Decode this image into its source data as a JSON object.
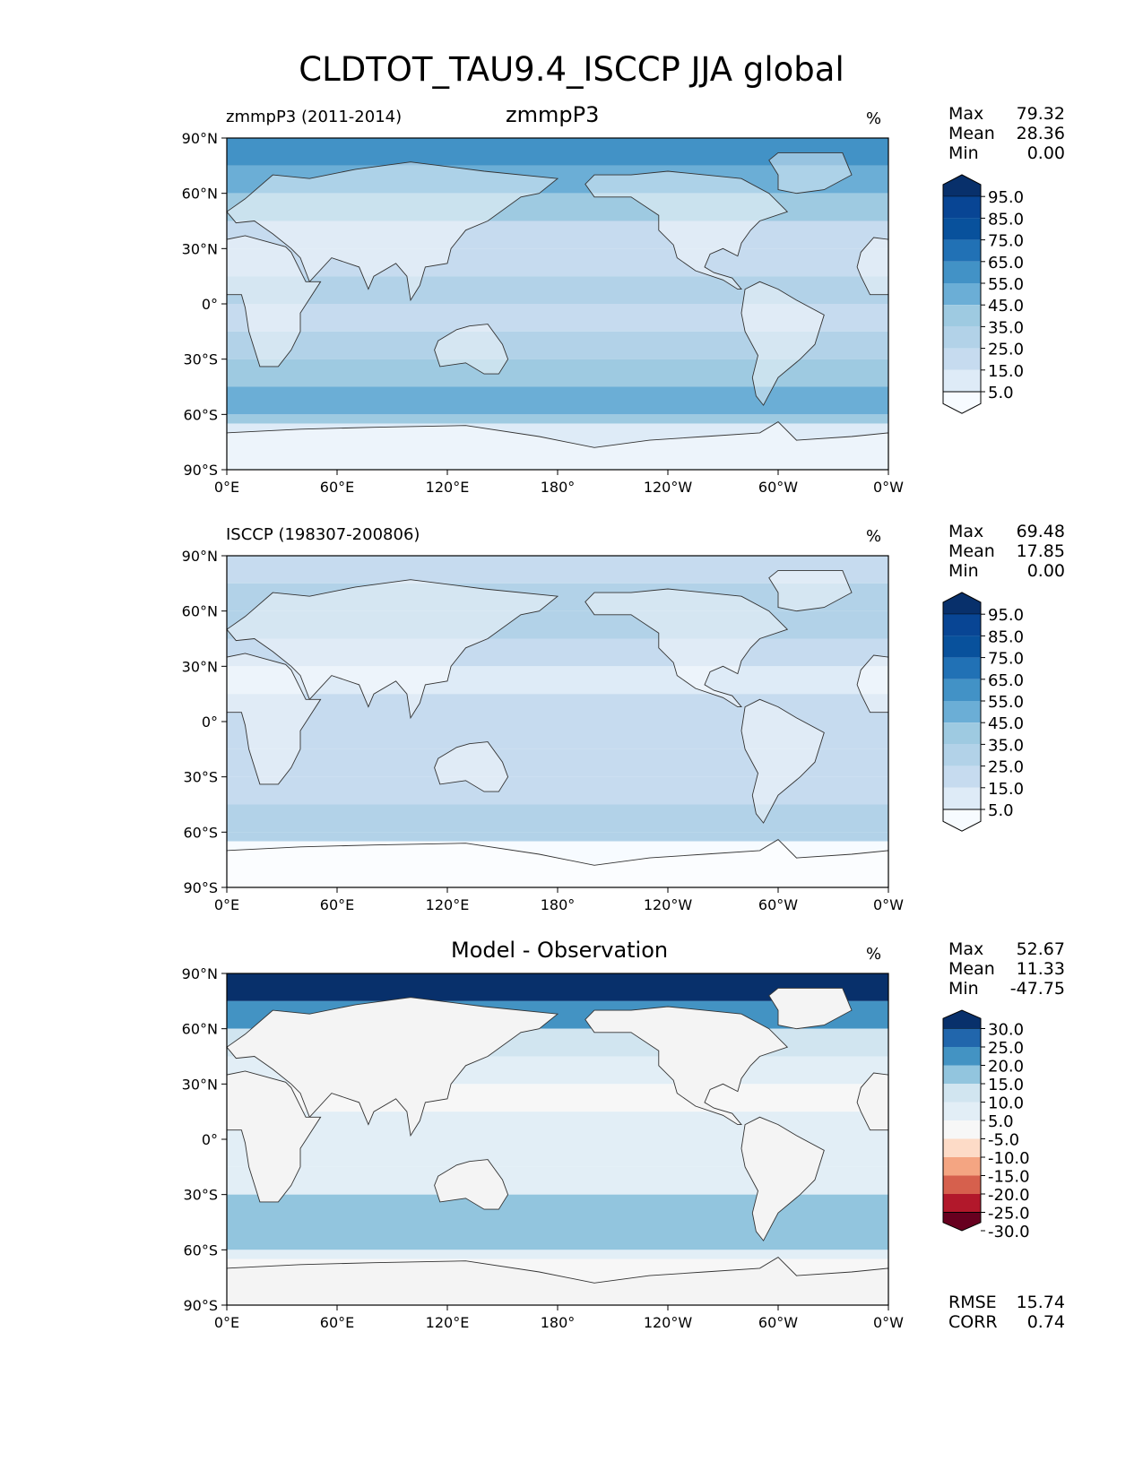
{
  "title": "CLDTOT_TAU9.4_ISCCP JJA global",
  "colors": {
    "seq": [
      "#f7fbff",
      "#deebf7",
      "#c6dbef",
      "#b2d2e8",
      "#9ecae1",
      "#6baed6",
      "#4292c6",
      "#2171b5",
      "#08519c",
      "#084594",
      "#08306b"
    ],
    "div": [
      "#67001f",
      "#b2182b",
      "#d6604d",
      "#f4a582",
      "#fddbc7",
      "#f7f7f7",
      "#e2eef6",
      "#d1e5f0",
      "#92c5de",
      "#4393c3",
      "#2166ac",
      "#08306b"
    ],
    "land_line": "#333333"
  },
  "axis": {
    "lat_ticks": [
      "90°N",
      "60°N",
      "30°N",
      "0°",
      "30°S",
      "60°S",
      "90°S"
    ],
    "lon_ticks": [
      "0°E",
      "60°E",
      "120°E",
      "180°",
      "120°W",
      "60°W",
      "0°W"
    ]
  },
  "panels": [
    {
      "id": "model",
      "left_title": "zmmpP3 (2011-2014)",
      "center_title": "zmmpP3",
      "units": "%",
      "stats": [
        [
          "Max",
          "79.32"
        ],
        [
          "Mean",
          "28.36"
        ],
        [
          "Min",
          "0.00"
        ]
      ],
      "colorbar_labels": [
        "95.0",
        "85.0",
        "75.0",
        "65.0",
        "55.0",
        "45.0",
        "35.0",
        "25.0",
        "15.0",
        "5.0"
      ]
    },
    {
      "id": "obs",
      "left_title": "ISCCP (198307-200806)",
      "center_title": "",
      "units": "%",
      "stats": [
        [
          "Max",
          "69.48"
        ],
        [
          "Mean",
          "17.85"
        ],
        [
          "Min",
          "0.00"
        ]
      ],
      "colorbar_labels": [
        "95.0",
        "85.0",
        "75.0",
        "65.0",
        "55.0",
        "45.0",
        "35.0",
        "25.0",
        "15.0",
        "5.0"
      ]
    },
    {
      "id": "diff",
      "left_title": "",
      "center_title": "Model - Observation",
      "units": "%",
      "stats": [
        [
          "Max",
          "52.67"
        ],
        [
          "Mean",
          "11.33"
        ],
        [
          "Min",
          "-47.75"
        ]
      ],
      "colorbar_labels": [
        "30.0",
        "25.0",
        "20.0",
        "15.0",
        "10.0",
        "5.0",
        "-5.0",
        "-10.0",
        "-15.0",
        "-20.0",
        "-25.0",
        "-30.0"
      ],
      "extra_stats": [
        [
          "RMSE",
          "15.74"
        ],
        [
          "CORR",
          "0.74"
        ]
      ]
    }
  ],
  "chart_data": [
    {
      "type": "heatmap",
      "title": "zmmpP3",
      "units": "%",
      "x_label_ticks": [
        "0°E",
        "60°E",
        "120°E",
        "180°",
        "120°W",
        "60°W",
        "0°W"
      ],
      "y_label_ticks": [
        "90°N",
        "60°N",
        "30°N",
        "0°",
        "30°S",
        "60°S",
        "90°S"
      ],
      "xlim": [
        0,
        360
      ],
      "ylim": [
        -90,
        90
      ],
      "levels": [
        5,
        15,
        25,
        35,
        45,
        55,
        65,
        75,
        85,
        95
      ],
      "zonal_bands": [
        {
          "lat": [
            75,
            90
          ],
          "value": 55
        },
        {
          "lat": [
            60,
            75
          ],
          "value": 45
        },
        {
          "lat": [
            45,
            60
          ],
          "value": 40
        },
        {
          "lat": [
            30,
            45
          ],
          "value": 22
        },
        {
          "lat": [
            15,
            30
          ],
          "value": 15
        },
        {
          "lat": [
            0,
            15
          ],
          "value": 25
        },
        {
          "lat": [
            -15,
            0
          ],
          "value": 22
        },
        {
          "lat": [
            -30,
            -15
          ],
          "value": 25
        },
        {
          "lat": [
            -45,
            -30
          ],
          "value": 35
        },
        {
          "lat": [
            -60,
            -45
          ],
          "value": 45
        },
        {
          "lat": [
            -65,
            -60
          ],
          "value": 35
        },
        {
          "lat": [
            -90,
            -65
          ],
          "value": 5
        }
      ],
      "max": 79.32,
      "mean": 28.36,
      "min": 0.0
    },
    {
      "type": "heatmap",
      "title": "ISCCP (198307-200806)",
      "units": "%",
      "x_label_ticks": [
        "0°E",
        "60°E",
        "120°E",
        "180°",
        "120°W",
        "60°W",
        "0°W"
      ],
      "y_label_ticks": [
        "90°N",
        "60°N",
        "30°N",
        "0°",
        "30°S",
        "60°S",
        "90°S"
      ],
      "xlim": [
        0,
        360
      ],
      "ylim": [
        -90,
        90
      ],
      "levels": [
        5,
        15,
        25,
        35,
        45,
        55,
        65,
        75,
        85,
        95
      ],
      "zonal_bands": [
        {
          "lat": [
            75,
            90
          ],
          "value": 15
        },
        {
          "lat": [
            60,
            75
          ],
          "value": 25
        },
        {
          "lat": [
            45,
            60
          ],
          "value": 28
        },
        {
          "lat": [
            30,
            45
          ],
          "value": 15
        },
        {
          "lat": [
            15,
            30
          ],
          "value": 12
        },
        {
          "lat": [
            0,
            15
          ],
          "value": 18
        },
        {
          "lat": [
            -15,
            0
          ],
          "value": 15
        },
        {
          "lat": [
            -30,
            -15
          ],
          "value": 18
        },
        {
          "lat": [
            -45,
            -30
          ],
          "value": 22
        },
        {
          "lat": [
            -60,
            -45
          ],
          "value": 30
        },
        {
          "lat": [
            -65,
            -60
          ],
          "value": 25
        },
        {
          "lat": [
            -90,
            -65
          ],
          "value": 0
        }
      ],
      "max": 69.48,
      "mean": 17.85,
      "min": 0.0
    },
    {
      "type": "heatmap",
      "title": "Model - Observation",
      "units": "%",
      "x_label_ticks": [
        "0°E",
        "60°E",
        "120°E",
        "180°",
        "120°W",
        "60°W",
        "0°W"
      ],
      "y_label_ticks": [
        "90°N",
        "60°N",
        "30°N",
        "0°",
        "30°S",
        "60°S",
        "90°S"
      ],
      "xlim": [
        0,
        360
      ],
      "ylim": [
        -90,
        90
      ],
      "levels": [
        -30,
        -25,
        -20,
        -15,
        -10,
        -5,
        5,
        10,
        15,
        20,
        25,
        30
      ],
      "zonal_bands": [
        {
          "lat": [
            75,
            90
          ],
          "value": 35
        },
        {
          "lat": [
            60,
            75
          ],
          "value": 20
        },
        {
          "lat": [
            45,
            60
          ],
          "value": 12
        },
        {
          "lat": [
            30,
            45
          ],
          "value": 7
        },
        {
          "lat": [
            15,
            30
          ],
          "value": 3
        },
        {
          "lat": [
            0,
            15
          ],
          "value": 7
        },
        {
          "lat": [
            -15,
            0
          ],
          "value": 7
        },
        {
          "lat": [
            -30,
            -15
          ],
          "value": 7
        },
        {
          "lat": [
            -45,
            -30
          ],
          "value": 15
        },
        {
          "lat": [
            -60,
            -45
          ],
          "value": 15
        },
        {
          "lat": [
            -65,
            -60
          ],
          "value": 8
        },
        {
          "lat": [
            -90,
            -65
          ],
          "value": 0
        }
      ],
      "max": 52.67,
      "mean": 11.33,
      "min": -47.75,
      "rmse": 15.74,
      "corr": 0.74
    }
  ]
}
